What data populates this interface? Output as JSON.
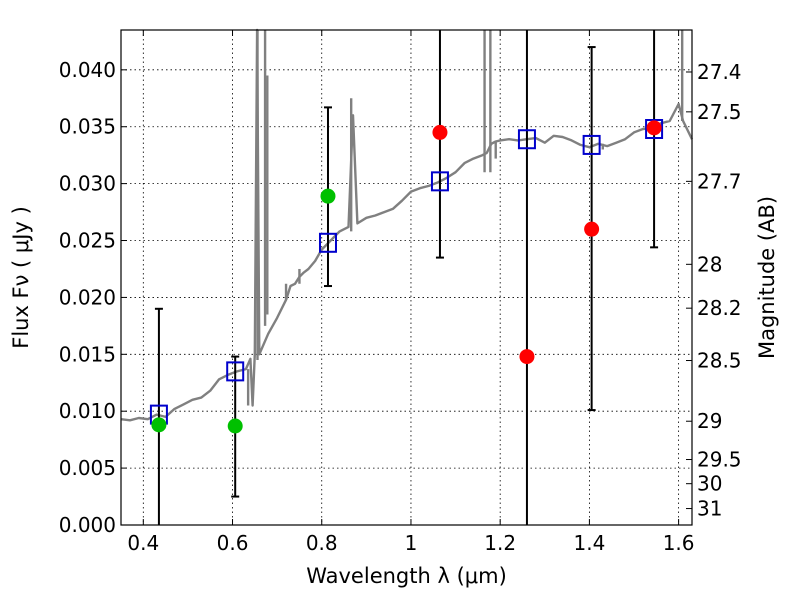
{
  "chart_data": {
    "type": "scatter",
    "xlabel": "Wavelength  λ (μm)",
    "ylabel": "Flux  Fν  ( μJy )",
    "y2label": "Magnitude (AB)",
    "xlim": [
      0.35,
      1.63
    ],
    "ylim": [
      0.0,
      0.0435
    ],
    "xticks": [
      0.4,
      0.6,
      0.8,
      1.0,
      1.2,
      1.4,
      1.6
    ],
    "xtick_labels": [
      "0.4",
      "0.6",
      "0.8",
      "1",
      "1.2",
      "1.4",
      "1.6"
    ],
    "yticks": [
      0.0,
      0.005,
      0.01,
      0.015,
      0.02,
      0.025,
      0.03,
      0.035,
      0.04
    ],
    "ytick_labels": [
      "0.000",
      "0.005",
      "0.010",
      "0.015",
      "0.020",
      "0.025",
      "0.030",
      "0.035",
      "0.040"
    ],
    "y2_ticks": [
      {
        "label": "27.4",
        "mag": 27.4
      },
      {
        "label": "27.5",
        "mag": 27.5
      },
      {
        "label": "27.7",
        "mag": 27.7
      },
      {
        "label": "28",
        "mag": 28.0
      },
      {
        "label": "28.2",
        "mag": 28.2
      },
      {
        "label": "28.5",
        "mag": 28.5
      },
      {
        "label": "29",
        "mag": 29.0
      },
      {
        "label": "29.5",
        "mag": 29.5
      },
      {
        "label": "30",
        "mag": 30.0
      },
      {
        "label": "31",
        "mag": 31.0
      }
    ],
    "grid": true,
    "colors": {
      "model": "#808080",
      "green": "#00c000",
      "red": "#ff0000",
      "box": "#0000cc",
      "error": "#000000"
    },
    "model_spectrum": [
      [
        0.35,
        0.0093
      ],
      [
        0.37,
        0.0092
      ],
      [
        0.39,
        0.0094
      ],
      [
        0.41,
        0.0093
      ],
      [
        0.43,
        0.0097
      ],
      [
        0.45,
        0.0095
      ],
      [
        0.47,
        0.0102
      ],
      [
        0.49,
        0.0106
      ],
      [
        0.51,
        0.011
      ],
      [
        0.53,
        0.0112
      ],
      [
        0.55,
        0.0118
      ],
      [
        0.57,
        0.0128
      ],
      [
        0.59,
        0.0132
      ],
      [
        0.61,
        0.0135
      ],
      [
        0.63,
        0.0137
      ],
      [
        0.64,
        0.0146
      ],
      [
        0.645,
        0.0105
      ],
      [
        0.65,
        0.015
      ],
      [
        0.655,
        0.045
      ],
      [
        0.66,
        0.015
      ],
      [
        0.68,
        0.0168
      ],
      [
        0.7,
        0.0182
      ],
      [
        0.72,
        0.0198
      ],
      [
        0.73,
        0.021
      ],
      [
        0.74,
        0.0212
      ],
      [
        0.75,
        0.0218
      ],
      [
        0.76,
        0.0222
      ],
      [
        0.77,
        0.0225
      ],
      [
        0.785,
        0.0232
      ],
      [
        0.8,
        0.0242
      ],
      [
        0.82,
        0.025
      ],
      [
        0.84,
        0.0258
      ],
      [
        0.86,
        0.0262
      ],
      [
        0.87,
        0.036
      ],
      [
        0.88,
        0.0265
      ],
      [
        0.9,
        0.027
      ],
      [
        0.92,
        0.0272
      ],
      [
        0.94,
        0.0275
      ],
      [
        0.96,
        0.0278
      ],
      [
        0.98,
        0.0285
      ],
      [
        1.0,
        0.0293
      ],
      [
        1.02,
        0.0296
      ],
      [
        1.04,
        0.0298
      ],
      [
        1.06,
        0.0301
      ],
      [
        1.08,
        0.0305
      ],
      [
        1.1,
        0.031
      ],
      [
        1.12,
        0.0318
      ],
      [
        1.14,
        0.0322
      ],
      [
        1.16,
        0.0325
      ],
      [
        1.17,
        0.0327
      ],
      [
        1.18,
        0.0335
      ],
      [
        1.19,
        0.0337
      ],
      [
        1.2,
        0.0338
      ],
      [
        1.22,
        0.0339
      ],
      [
        1.24,
        0.0338
      ],
      [
        1.26,
        0.0339
      ],
      [
        1.28,
        0.034
      ],
      [
        1.3,
        0.0336
      ],
      [
        1.32,
        0.0342
      ],
      [
        1.34,
        0.0341
      ],
      [
        1.36,
        0.0338
      ],
      [
        1.38,
        0.0334
      ],
      [
        1.4,
        0.0332
      ],
      [
        1.42,
        0.0335
      ],
      [
        1.44,
        0.0333
      ],
      [
        1.46,
        0.0336
      ],
      [
        1.48,
        0.0339
      ],
      [
        1.5,
        0.0345
      ],
      [
        1.52,
        0.0348
      ],
      [
        1.54,
        0.0349
      ],
      [
        1.56,
        0.0353
      ],
      [
        1.58,
        0.0355
      ],
      [
        1.6,
        0.037
      ],
      [
        1.61,
        0.0355
      ],
      [
        1.63,
        0.0339
      ]
    ],
    "model_emission_spikes": [
      {
        "x": 0.656,
        "ymin": 0.0145,
        "ymax": 0.0435
      },
      {
        "x": 0.673,
        "ymin": 0.0175,
        "ymax": 0.0435
      },
      {
        "x": 0.678,
        "ymin": 0.0185,
        "ymax": 0.0395
      },
      {
        "x": 0.866,
        "ymin": 0.0258,
        "ymax": 0.0375
      },
      {
        "x": 1.165,
        "ymin": 0.031,
        "ymax": 0.0435
      },
      {
        "x": 1.178,
        "ymin": 0.031,
        "ymax": 0.0435
      },
      {
        "x": 1.608,
        "ymin": 0.0355,
        "ymax": 0.0435
      }
    ],
    "model_absorption_dips": [
      {
        "x": 0.635,
        "ymin": 0.0105,
        "ymax": 0.0137
      },
      {
        "x": 0.72,
        "ymin": 0.0198,
        "ymax": 0.0212
      },
      {
        "x": 0.75,
        "ymin": 0.0212,
        "ymax": 0.0225
      },
      {
        "x": 1.19,
        "ymin": 0.0322,
        "ymax": 0.0337
      },
      {
        "x": 1.43,
        "ymin": 0.033,
        "ymax": 0.0335
      }
    ],
    "green_points": [
      {
        "x": 0.435,
        "y": 0.0088,
        "yerr_low": 0.0,
        "yerr_high": 0.019
      },
      {
        "x": 0.606,
        "y": 0.0087,
        "yerr_low": 0.0025,
        "yerr_high": 0.0148
      },
      {
        "x": 0.814,
        "y": 0.0289,
        "yerr_low": 0.021,
        "yerr_high": 0.0367
      }
    ],
    "red_points": [
      {
        "x": 1.065,
        "y": 0.0345,
        "yerr_low": 0.0235,
        "yerr_high": 0.0435
      },
      {
        "x": 1.26,
        "y": 0.0148,
        "yerr_low": 0.0,
        "yerr_high": 0.0435
      },
      {
        "x": 1.405,
        "y": 0.026,
        "yerr_low": 0.0101,
        "yerr_high": 0.042
      },
      {
        "x": 1.545,
        "y": 0.0349,
        "yerr_low": 0.0244,
        "yerr_high": 0.0435
      }
    ],
    "box_points": [
      {
        "x": 0.435,
        "y": 0.0097
      },
      {
        "x": 0.606,
        "y": 0.0135
      },
      {
        "x": 0.814,
        "y": 0.0248
      },
      {
        "x": 1.065,
        "y": 0.0302
      },
      {
        "x": 1.26,
        "y": 0.0339
      },
      {
        "x": 1.405,
        "y": 0.0334
      },
      {
        "x": 1.545,
        "y": 0.0348
      }
    ]
  }
}
